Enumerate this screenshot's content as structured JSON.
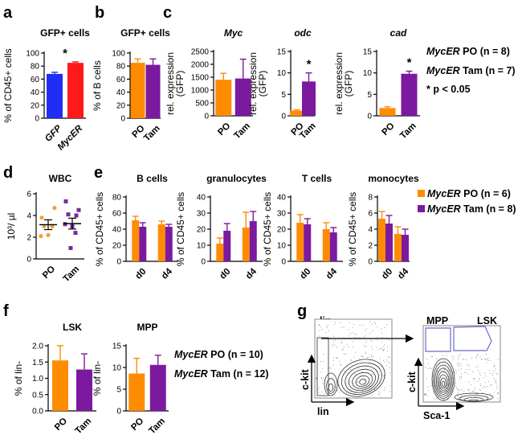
{
  "colors": {
    "po": "#ff8c00",
    "tam": "#7b1a9e",
    "gfp": "#1f2df5",
    "mycer": "#ff1a1a",
    "dot_po": "#f5a033",
    "dot_tam": "#7b2a9a",
    "gate": "#6a6ac8"
  },
  "panel_labels": {
    "a": "a",
    "b": "b",
    "c": "c",
    "d": "d",
    "e": "e",
    "f": "f",
    "g": "g"
  },
  "chart_data": [
    {
      "id": "a",
      "type": "bar",
      "title": "GFP+ cells",
      "ylabel": "% of CD45+ cells",
      "ylim": [
        0,
        100
      ],
      "yticks": [
        0,
        20,
        40,
        60,
        80,
        100
      ],
      "categories": [
        "GFP",
        "MycER"
      ],
      "values": [
        68,
        85
      ],
      "errors": [
        2.5,
        1.5
      ],
      "annotation": "*"
    },
    {
      "id": "b",
      "type": "bar",
      "title": "GFP+ cells",
      "ylabel": "% of B cells",
      "ylim": [
        0,
        100
      ],
      "yticks": [
        0,
        20,
        40,
        60,
        80,
        100
      ],
      "categories": [
        "PO",
        "Tam"
      ],
      "values": [
        85,
        82
      ],
      "errors": [
        6,
        9
      ]
    },
    {
      "id": "c1",
      "type": "bar",
      "title": "Myc",
      "ylabel_line1": "rel. expression",
      "ylabel_line2": "(GFP)",
      "ylim": [
        0,
        2500
      ],
      "yticks": [
        0,
        500,
        1000,
        1500,
        2000,
        2500
      ],
      "categories": [
        "PO",
        "Tam"
      ],
      "values": [
        1400,
        1450
      ],
      "errors": [
        250,
        750
      ]
    },
    {
      "id": "c2",
      "type": "bar",
      "title": "odc",
      "ylabel_line1": "rel. expression",
      "ylabel_line2": "(GFP)",
      "ylim": [
        0,
        15
      ],
      "yticks": [
        0,
        5,
        10,
        15
      ],
      "categories": [
        "PO",
        "Tam"
      ],
      "values": [
        1.2,
        8
      ],
      "errors": [
        0.2,
        2
      ],
      "annotation": "*"
    },
    {
      "id": "c3",
      "type": "bar",
      "title": "cad",
      "ylabel_line1": "rel. expression",
      "ylabel_line2": "(GFP)",
      "ylim": [
        0,
        15
      ],
      "yticks": [
        0,
        5,
        10,
        15
      ],
      "categories": [
        "PO",
        "Tam"
      ],
      "values": [
        1.8,
        9.8
      ],
      "errors": [
        0.3,
        0.6
      ],
      "annotation": "*"
    },
    {
      "id": "d",
      "type": "scatter",
      "title": "WBC",
      "ylabel": "10³/ µl",
      "ylim": [
        0,
        6
      ],
      "yticks": [
        0,
        2,
        4,
        6
      ],
      "categories": [
        "PO",
        "Tam"
      ],
      "points": [
        [
          3.8,
          4.7,
          3.0,
          3.0,
          2.1,
          2.2
        ],
        [
          5.3,
          4.5,
          4.1,
          4.0,
          3.2,
          3.0,
          2.4,
          1.0
        ]
      ],
      "means": [
        3.15,
        3.25
      ],
      "sems": [
        0.45,
        0.5
      ]
    },
    {
      "id": "e1",
      "type": "bar",
      "title": "B cells",
      "ylabel": "% of CD45+ cells",
      "ylim": [
        0,
        80
      ],
      "yticks": [
        0,
        20,
        40,
        60,
        80
      ],
      "categories": [
        "d0",
        "d4"
      ],
      "series": [
        {
          "name": "PO",
          "values": [
            51,
            46
          ],
          "errors": [
            5,
            4
          ]
        },
        {
          "name": "Tam",
          "values": [
            43,
            43
          ],
          "errors": [
            5,
            3
          ]
        }
      ]
    },
    {
      "id": "e2",
      "type": "bar",
      "title": "granulocytes",
      "ylabel": "% of CD45+ cells",
      "ylim": [
        0,
        40
      ],
      "yticks": [
        0,
        10,
        20,
        30,
        40
      ],
      "categories": [
        "d0",
        "d4"
      ],
      "series": [
        {
          "name": "PO",
          "values": [
            11,
            21
          ],
          "errors": [
            3.5,
            9.5
          ]
        },
        {
          "name": "Tam",
          "values": [
            19,
            25
          ],
          "errors": [
            4.5,
            6
          ]
        }
      ]
    },
    {
      "id": "e3",
      "type": "bar",
      "title": "T cells",
      "ylabel": "% of CD45+ cells",
      "ylim": [
        0,
        40
      ],
      "yticks": [
        0,
        10,
        20,
        30,
        40
      ],
      "categories": [
        "d0",
        "d4"
      ],
      "series": [
        {
          "name": "PO",
          "values": [
            24,
            20
          ],
          "errors": [
            5,
            4
          ]
        },
        {
          "name": "Tam",
          "values": [
            23,
            18
          ],
          "errors": [
            3.5,
            3
          ]
        }
      ]
    },
    {
      "id": "e4",
      "type": "bar",
      "title": "monocytes",
      "ylabel": "% of CD45+ cells",
      "ylim": [
        0,
        8
      ],
      "yticks": [
        0,
        2,
        4,
        6,
        8
      ],
      "categories": [
        "d0",
        "d4"
      ],
      "series": [
        {
          "name": "PO",
          "values": [
            5.3,
            3.4
          ],
          "errors": [
            0.9,
            0.9
          ]
        },
        {
          "name": "Tam",
          "values": [
            4.7,
            3.3
          ],
          "errors": [
            1,
            0.7
          ]
        }
      ]
    },
    {
      "id": "f1",
      "type": "bar",
      "title": "LSK",
      "ylabel": "% of lin-",
      "ylim": [
        0,
        2.0
      ],
      "yticks": [
        0.0,
        0.5,
        1.0,
        1.5,
        2.0
      ],
      "categories": [
        "PO",
        "Tam"
      ],
      "values": [
        1.55,
        1.27
      ],
      "errors": [
        0.45,
        0.48
      ]
    },
    {
      "id": "f2",
      "type": "bar",
      "title": "MPP",
      "ylabel": "% of lin-",
      "ylim": [
        0,
        15
      ],
      "yticks": [
        0,
        5,
        10,
        15
      ],
      "categories": [
        "PO",
        "Tam"
      ],
      "values": [
        8.6,
        10.6
      ],
      "errors": [
        3.5,
        2.2
      ]
    }
  ],
  "legend_c": {
    "line1_gene": "MycER",
    "line1_rest": " PO (n = 8)",
    "line2_gene": "MycER",
    "line2_rest": " Tam (n = 7)",
    "line3": "* p < 0.05"
  },
  "legend_e": {
    "line1_gene": "MycER",
    "line1_rest": " PO (n = 6)",
    "line2_gene": "MycER",
    "line2_rest": " Tam (n = 8)"
  },
  "legend_f": {
    "line1_gene": "MycER",
    "line1_rest": " PO (n = 10)",
    "line2_gene": "MycER",
    "line2_rest": " Tam (n = 12)"
  },
  "flow": {
    "left_title": "lin-",
    "left_x": "lin",
    "left_y": "c-kit",
    "right_gate1": "MPP",
    "right_gate2": "LSK",
    "right_x": "Sca-1",
    "right_y": "c-kit"
  }
}
